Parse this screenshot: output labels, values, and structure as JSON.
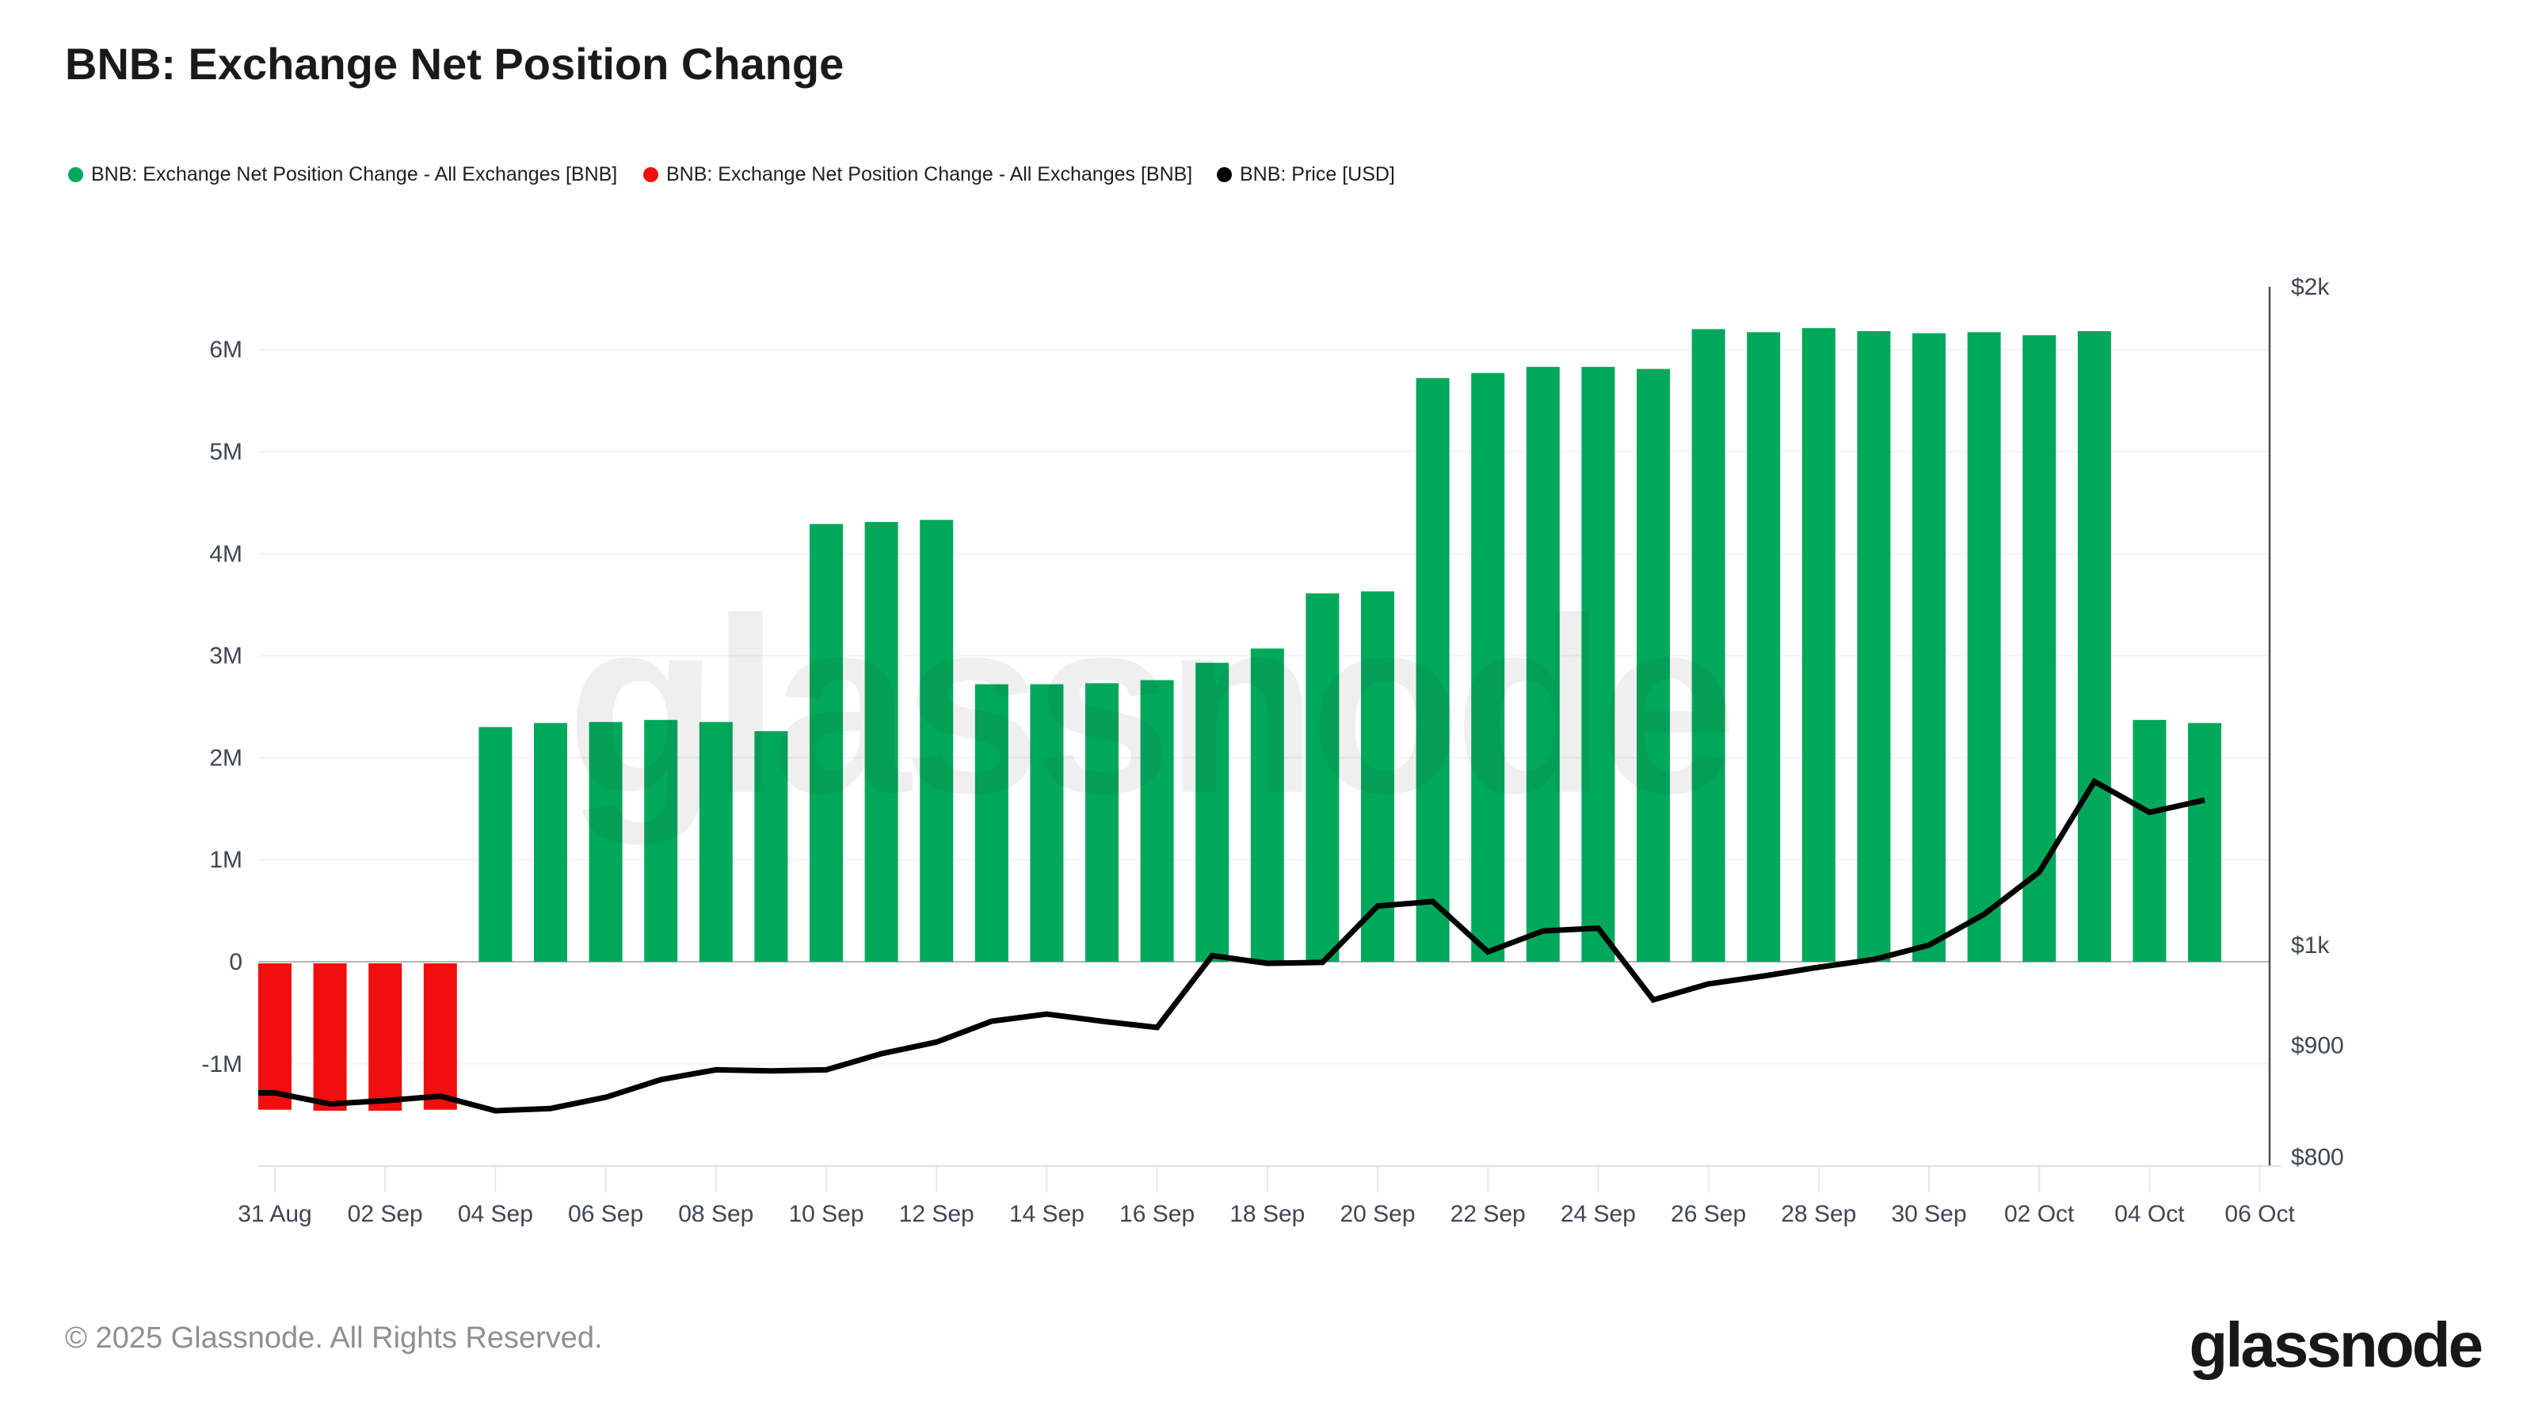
{
  "title": "BNB: Exchange Net Position Change",
  "legend": {
    "items": [
      {
        "label": "BNB: Exchange Net Position Change - All Exchanges [BNB]",
        "color": "#00a85c"
      },
      {
        "label": "BNB: Exchange Net Position Change - All Exchanges [BNB]",
        "color": "#f10e0e"
      },
      {
        "label": "BNB: Price [USD]",
        "color": "#000000"
      }
    ]
  },
  "watermark": "glassnode",
  "footer": {
    "copyright": "© 2025 Glassnode. All Rights Reserved.",
    "brand": "glassnode"
  },
  "chart_data": {
    "type": "mixed",
    "title": "BNB: Exchange Net Position Change",
    "x": [
      "31 Aug",
      "01 Sep",
      "02 Sep",
      "03 Sep",
      "04 Sep",
      "05 Sep",
      "06 Sep",
      "07 Sep",
      "08 Sep",
      "09 Sep",
      "10 Sep",
      "11 Sep",
      "12 Sep",
      "13 Sep",
      "14 Sep",
      "15 Sep",
      "16 Sep",
      "17 Sep",
      "18 Sep",
      "19 Sep",
      "20 Sep",
      "21 Sep",
      "22 Sep",
      "23 Sep",
      "24 Sep",
      "25 Sep",
      "26 Sep",
      "27 Sep",
      "28 Sep",
      "29 Sep",
      "30 Sep",
      "01 Oct",
      "02 Oct",
      "03 Oct",
      "04 Oct",
      "05 Oct"
    ],
    "series": [
      {
        "name": "BNB: Exchange Net Position Change - All Exchanges [BNB]",
        "type": "bar",
        "unit": "M BNB",
        "color_positive": "#00a85c",
        "color_negative": "#f10e0e",
        "values": [
          -1.45,
          -1.46,
          -1.46,
          -1.45,
          2.3,
          2.34,
          2.35,
          2.37,
          2.35,
          2.26,
          4.29,
          4.31,
          4.33,
          2.72,
          2.72,
          2.73,
          2.76,
          2.93,
          3.07,
          3.61,
          3.63,
          5.72,
          5.77,
          5.83,
          5.83,
          5.81,
          6.2,
          6.17,
          6.21,
          6.18,
          6.16,
          6.17,
          6.14,
          6.18,
          2.37,
          2.34
        ]
      },
      {
        "name": "BNB: Price [USD]",
        "type": "line",
        "unit": "USD",
        "color": "#000000",
        "values": [
          856,
          846,
          849,
          853,
          840,
          842,
          852,
          868,
          877,
          876,
          877,
          892,
          903,
          923,
          930,
          923,
          917,
          989,
          981,
          982,
          1042,
          1047,
          993,
          1015,
          1018,
          944,
          960,
          968,
          977,
          985,
          1000,
          1033,
          1080,
          1188,
          1150,
          1165
        ]
      }
    ],
    "left_axis": {
      "label_format": "millions",
      "ticks": [
        {
          "v": 6,
          "label": "6M"
        },
        {
          "v": 5,
          "label": "5M"
        },
        {
          "v": 4,
          "label": "4M"
        },
        {
          "v": 3,
          "label": "3M"
        },
        {
          "v": 2,
          "label": "2M"
        },
        {
          "v": 1,
          "label": "1M"
        },
        {
          "v": 0,
          "label": "0"
        },
        {
          "v": -1,
          "label": "-1M"
        }
      ],
      "range": [
        -1.95,
        6.75
      ],
      "grid": true
    },
    "right_axis": {
      "scale": "log",
      "ticks": [
        {
          "v": 2000,
          "label": "$2k"
        },
        {
          "v": 1000,
          "label": "$1k"
        },
        {
          "v": 900,
          "label": "$900"
        },
        {
          "v": 800,
          "label": "$800"
        }
      ],
      "grid": false
    },
    "x_tick_labels": [
      "31 Aug",
      "02 Sep",
      "04 Sep",
      "06 Sep",
      "08 Sep",
      "10 Sep",
      "12 Sep",
      "14 Sep",
      "16 Sep",
      "18 Sep",
      "20 Sep",
      "22 Sep",
      "24 Sep",
      "26 Sep",
      "28 Sep",
      "30 Sep",
      "02 Oct",
      "04 Oct",
      "06 Oct"
    ],
    "legend_position": "top-left",
    "colors": {
      "grid": "#f3f3f3",
      "zero_line": "#b5b5b5",
      "right_axis_line": "#4d4d4d",
      "bottom_border": "#e0e0e0",
      "x_tick": "#e8e8e8",
      "axis_text": "#3e4653"
    }
  }
}
